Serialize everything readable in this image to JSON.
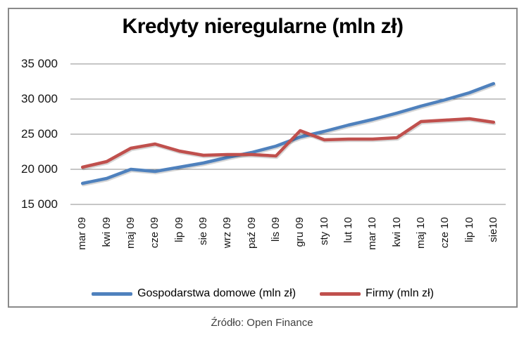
{
  "chart_data": {
    "type": "line",
    "title": "Kredyty nieregularne (mln zł)",
    "categories": [
      "mar 09",
      "kwi 09",
      "maj 09",
      "cze 09",
      "lip 09",
      "sie 09",
      "wrz 09",
      "paź 09",
      "lis 09",
      "gru 09",
      "sty 10",
      "lut 10",
      "mar 10",
      "kwi 10",
      "maj 10",
      "cze 10",
      "lip 10",
      "sie10"
    ],
    "series": [
      {
        "name": "Gospodarstwa domowe (mln zł)",
        "color": "#4F81BD",
        "values": [
          18000,
          18700,
          20000,
          19700,
          20300,
          20900,
          21700,
          22400,
          23300,
          24600,
          25400,
          26300,
          27100,
          28000,
          29000,
          29900,
          30900,
          32200
        ]
      },
      {
        "name": "Firmy (mln zł)",
        "color": "#C0504D",
        "values": [
          20300,
          21100,
          23000,
          23600,
          22600,
          22000,
          22100,
          22100,
          21900,
          25500,
          24200,
          24300,
          24300,
          24500,
          26800,
          27000,
          27200,
          26700
        ]
      }
    ],
    "ymin": 15000,
    "ymax": 35000,
    "ystep": 5000,
    "ytick_labels": [
      "35 000",
      "30 000",
      "25 000",
      "20 000",
      "15 000"
    ],
    "grid": "horizontal-only",
    "legend_position": "bottom",
    "x_label_rotation": 90
  },
  "caption": "Źródło: Open Finance",
  "colors": {
    "gridline": "#8e8e8e",
    "frame_border": "#8a8a8a",
    "axis_text": "#151515",
    "caption_text": "#3f3f3f"
  }
}
